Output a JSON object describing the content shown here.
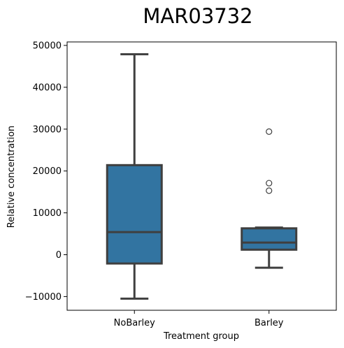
{
  "chart_data": {
    "type": "box",
    "title": "MAR03732",
    "xlabel": "Treatment group",
    "ylabel": "Relative concentration",
    "ylim": [
      -13500,
      51000
    ],
    "yticks": [
      -10000,
      0,
      10000,
      20000,
      30000,
      40000,
      50000
    ],
    "ytick_labels": [
      "−10000",
      "0",
      "10000",
      "20000",
      "30000",
      "40000",
      "50000"
    ],
    "grid": false,
    "box_color": "#3274a1",
    "line_color": "#3f3f3f",
    "categories": [
      "NoBarley",
      "Barley"
    ],
    "boxes": [
      {
        "category": "NoBarley",
        "whisker_low": -10500,
        "q1": -2100,
        "median": 5400,
        "q3": 21400,
        "whisker_high": 47900,
        "outliers": []
      },
      {
        "category": "Barley",
        "whisker_low": -3100,
        "q1": 1200,
        "median": 2900,
        "q3": 6300,
        "whisker_high": 6500,
        "outliers": [
          15300,
          17100,
          29400
        ]
      }
    ]
  }
}
